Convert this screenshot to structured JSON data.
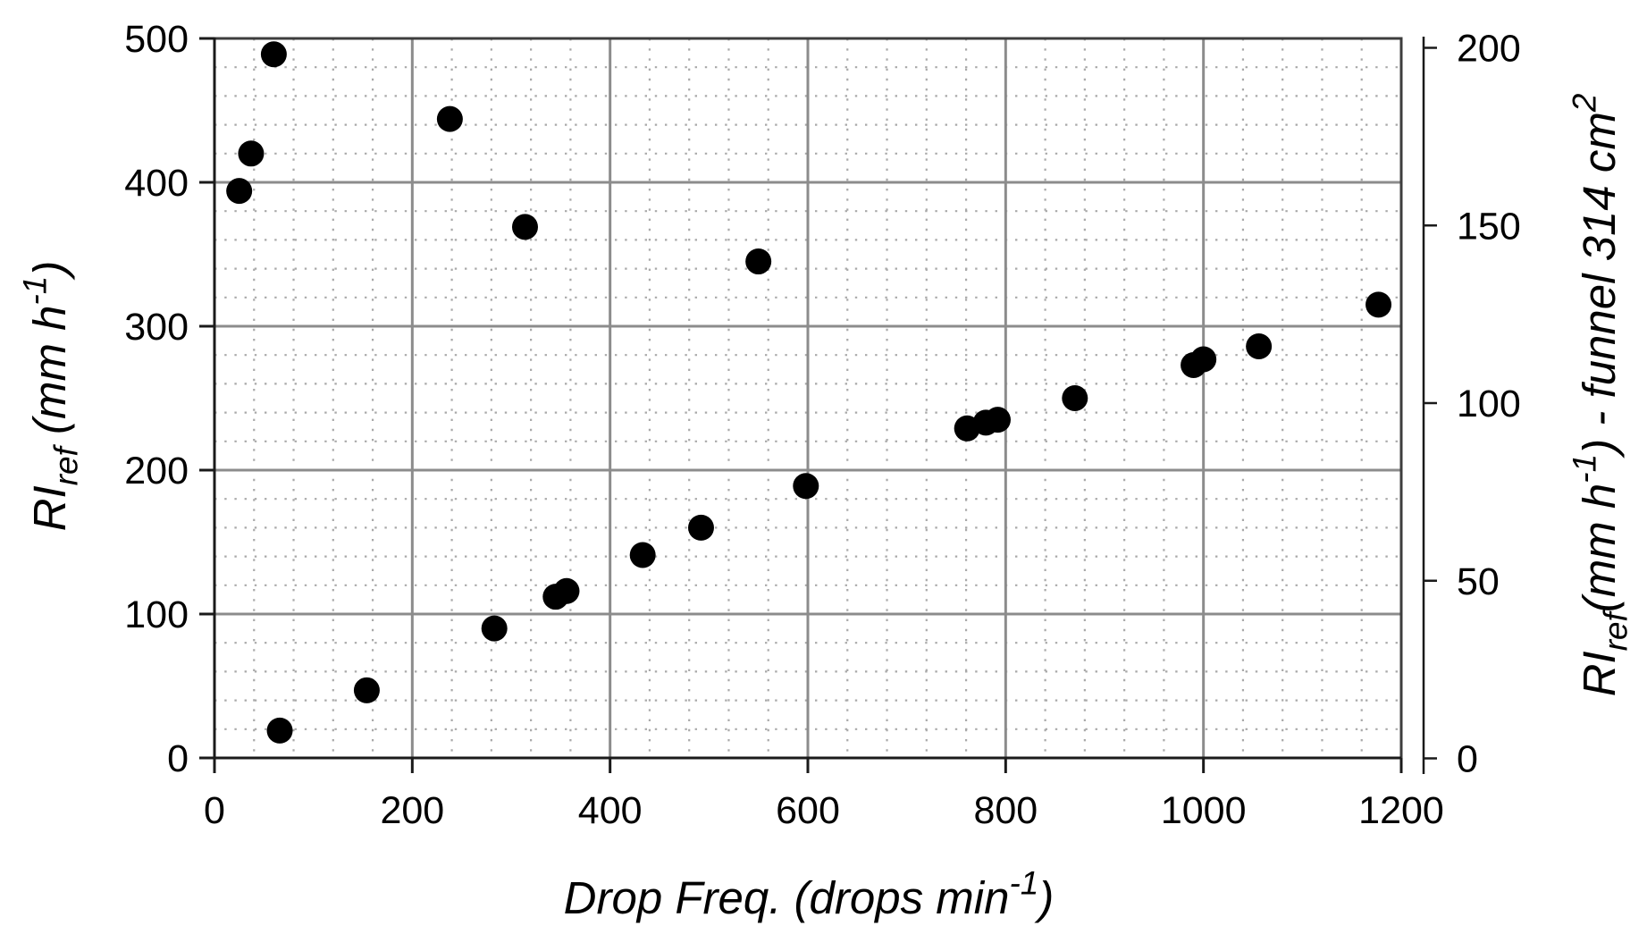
{
  "chart_data": {
    "type": "scatter",
    "title": "",
    "xlabel": "Drop Freq. (drops min-1)",
    "xlabel_parts": [
      {
        "t": "Drop Freq. (drops min"
      },
      {
        "t": "-1",
        "style": "sup"
      },
      {
        "t": ")"
      }
    ],
    "ylabel_left": "RIref (mm h-1)",
    "ylabel_left_parts": [
      {
        "t": "RI"
      },
      {
        "t": "ref",
        "style": "sub"
      },
      {
        "t": " (mm h"
      },
      {
        "t": "-1",
        "style": "sup"
      },
      {
        "t": ")"
      }
    ],
    "ylabel_right": "RIref(mm h-1)  - funnel 314 cm2",
    "ylabel_right_parts": [
      {
        "t": "RI"
      },
      {
        "t": "ref",
        "style": "sub"
      },
      {
        "t": "(mm h"
      },
      {
        "t": "-1",
        "style": "sup"
      },
      {
        "t": ")  - funnel 314 cm"
      },
      {
        "t": "2",
        "style": "sup"
      }
    ],
    "xlim": [
      0,
      1200
    ],
    "ylim_left": [
      0,
      500
    ],
    "ylim_right": [
      0,
      200
    ],
    "x_ticks": [
      0,
      200,
      400,
      600,
      800,
      1000,
      1200
    ],
    "y_ticks_left": [
      0,
      100,
      200,
      300,
      400,
      500
    ],
    "y_ticks_right": [
      0,
      50,
      100,
      150,
      200
    ],
    "minor_grid": {
      "x_step": 40,
      "y_step": 20
    },
    "grid": "major solid gray, minor dotted light gray",
    "legend": "none",
    "marker": {
      "shape": "circle",
      "color": "#000000",
      "radius_px": 14.5
    },
    "colors": {
      "axis": "#1a1a1a",
      "border": "#3d3d3d",
      "major_grid": "#8c8c8c",
      "minor_grid": "#a9a9a9",
      "text": "#000000",
      "background": "#ffffff"
    },
    "points": [
      [
        25,
        394
      ],
      [
        37,
        420
      ],
      [
        60,
        489
      ],
      [
        66,
        19
      ],
      [
        154,
        47
      ],
      [
        238,
        444
      ],
      [
        283,
        90
      ],
      [
        314,
        369
      ],
      [
        345,
        112
      ],
      [
        356,
        116
      ],
      [
        433,
        141
      ],
      [
        492,
        160
      ],
      [
        550,
        345
      ],
      [
        598,
        189
      ],
      [
        761,
        229
      ],
      [
        780,
        233
      ],
      [
        792,
        235
      ],
      [
        870,
        250
      ],
      [
        990,
        273
      ],
      [
        1000,
        277
      ],
      [
        1056,
        286
      ],
      [
        1177,
        315
      ]
    ]
  }
}
